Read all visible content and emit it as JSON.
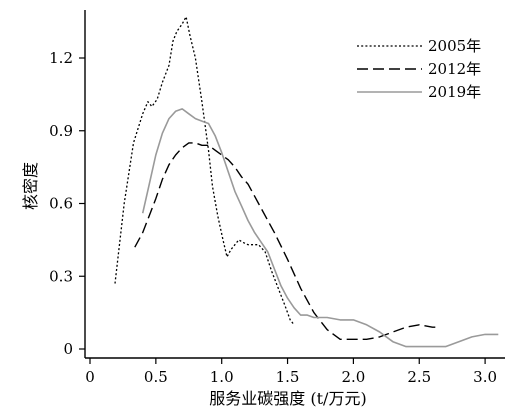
{
  "chart_data": {
    "type": "line",
    "xlabel": "服务业碳强度 (t/万元)",
    "ylabel": "核密度",
    "xlim": [
      0,
      3.2
    ],
    "ylim": [
      0,
      1.42
    ],
    "x_ticks": [
      0,
      0.5,
      1.0,
      1.5,
      2.0,
      2.5,
      3.0
    ],
    "x_tick_labels": [
      "0",
      "0.5",
      "1.0",
      "1.5",
      "2.0",
      "2.5",
      "3.0"
    ],
    "y_ticks": [
      0,
      0.3,
      0.6,
      0.9,
      1.2
    ],
    "y_tick_labels": [
      "0",
      "0.3",
      "0.6",
      "0.9",
      "1.2"
    ],
    "grid": false,
    "legend_position": "top-right",
    "series": [
      {
        "name": "2005年",
        "color": "#000000",
        "dash": "dotted",
        "x": [
          0.19,
          0.26,
          0.33,
          0.4,
          0.44,
          0.47,
          0.51,
          0.55,
          0.6,
          0.63,
          0.66,
          0.7,
          0.73,
          0.76,
          0.8,
          0.85,
          0.9,
          0.93,
          0.97,
          1.01,
          1.04,
          1.07,
          1.1,
          1.13,
          1.16,
          1.2,
          1.24,
          1.28,
          1.33,
          1.38,
          1.43,
          1.48,
          1.52,
          1.55
        ],
        "y": [
          0.27,
          0.6,
          0.85,
          0.97,
          1.02,
          1.0,
          1.03,
          1.1,
          1.17,
          1.27,
          1.31,
          1.34,
          1.37,
          1.29,
          1.2,
          1.02,
          0.82,
          0.67,
          0.55,
          0.45,
          0.38,
          0.41,
          0.43,
          0.45,
          0.44,
          0.43,
          0.43,
          0.43,
          0.4,
          0.32,
          0.25,
          0.18,
          0.12,
          0.1
        ]
      },
      {
        "name": "2012年",
        "color": "#000000",
        "dash": "dashed",
        "x": [
          0.34,
          0.4,
          0.45,
          0.5,
          0.55,
          0.6,
          0.65,
          0.7,
          0.75,
          0.8,
          0.85,
          0.9,
          0.95,
          1.0,
          1.05,
          1.1,
          1.15,
          1.2,
          1.25,
          1.3,
          1.4,
          1.5,
          1.6,
          1.7,
          1.8,
          1.9,
          2.0,
          2.1,
          2.2,
          2.3,
          2.4,
          2.5,
          2.6,
          2.65
        ],
        "y": [
          0.42,
          0.48,
          0.55,
          0.62,
          0.7,
          0.76,
          0.8,
          0.83,
          0.85,
          0.85,
          0.84,
          0.84,
          0.82,
          0.8,
          0.78,
          0.75,
          0.71,
          0.68,
          0.63,
          0.58,
          0.48,
          0.37,
          0.25,
          0.15,
          0.08,
          0.04,
          0.04,
          0.04,
          0.05,
          0.07,
          0.09,
          0.1,
          0.09,
          0.09
        ]
      },
      {
        "name": "2019年",
        "color": "#9a9a9a",
        "dash": "solid",
        "x": [
          0.4,
          0.45,
          0.5,
          0.55,
          0.6,
          0.65,
          0.7,
          0.75,
          0.8,
          0.85,
          0.9,
          0.95,
          1.0,
          1.05,
          1.1,
          1.15,
          1.2,
          1.25,
          1.3,
          1.35,
          1.4,
          1.45,
          1.5,
          1.55,
          1.6,
          1.65,
          1.7,
          1.8,
          1.9,
          2.0,
          2.1,
          2.2,
          2.3,
          2.4,
          2.5,
          2.6,
          2.7,
          2.8,
          2.9,
          3.0,
          3.1
        ],
        "y": [
          0.56,
          0.68,
          0.8,
          0.89,
          0.95,
          0.98,
          0.99,
          0.97,
          0.95,
          0.94,
          0.93,
          0.88,
          0.81,
          0.73,
          0.65,
          0.59,
          0.53,
          0.48,
          0.44,
          0.4,
          0.33,
          0.26,
          0.21,
          0.17,
          0.14,
          0.14,
          0.13,
          0.13,
          0.12,
          0.12,
          0.1,
          0.07,
          0.03,
          0.01,
          0.01,
          0.01,
          0.01,
          0.03,
          0.05,
          0.06,
          0.06
        ]
      }
    ]
  }
}
